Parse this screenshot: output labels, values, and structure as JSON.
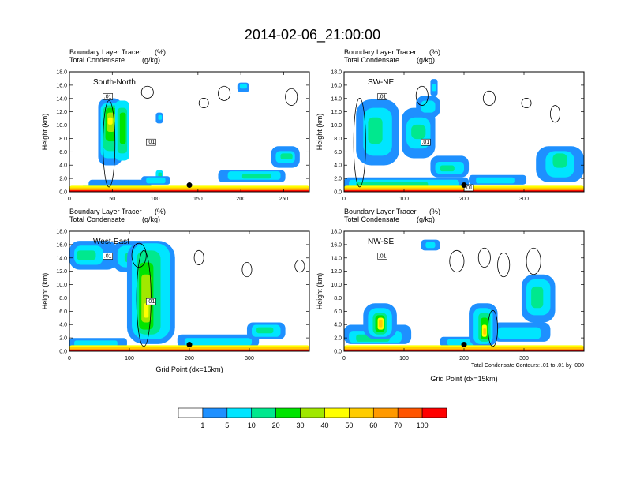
{
  "title": "2014-02-06_21:00:00",
  "chart_data": [
    {
      "type": "heatmap",
      "cross_section": "South-North",
      "subtitle_left": "Boundary Layer Tracer",
      "subtitle_units": "(%)",
      "subtitle2_left": "Total Condensate",
      "subtitle2_units": "(g/kg)",
      "ylabel": "Height (km)",
      "xlabel": "",
      "xlim": [
        0,
        280
      ],
      "ylim": [
        0,
        18
      ],
      "xticks": [
        0,
        50,
        100,
        150,
        200,
        250
      ],
      "contour_labels": [
        ".01",
        ".01"
      ],
      "marker": {
        "x": 140,
        "y": 1.0
      }
    },
    {
      "type": "heatmap",
      "cross_section": "SW-NE",
      "subtitle_left": "Boundary Layer Tracer",
      "subtitle_units": "(%)",
      "subtitle2_left": "Total Condensate",
      "subtitle2_units": "(g/kg)",
      "ylabel": "Height (km)",
      "xlabel": "",
      "xlim": [
        0,
        400
      ],
      "ylim": [
        0,
        18
      ],
      "xticks": [
        0,
        100,
        200,
        300
      ],
      "contour_labels": [
        ".01",
        ".01",
        ".01"
      ],
      "marker": {
        "x": 200,
        "y": 1.0
      }
    },
    {
      "type": "heatmap",
      "cross_section": "West-East",
      "subtitle_left": "Boundary Layer Tracer",
      "subtitle_units": "(%)",
      "subtitle2_left": "Total Condensate",
      "subtitle2_units": "(g/kg)",
      "ylabel": "Height (km)",
      "xlabel": "Grid Point (dx=15km)",
      "xlim": [
        0,
        400
      ],
      "ylim": [
        0,
        18
      ],
      "xticks": [
        0,
        100,
        200,
        300
      ],
      "contour_labels": [
        ".01",
        ".01"
      ],
      "marker": {
        "x": 200,
        "y": 1.0
      }
    },
    {
      "type": "heatmap",
      "cross_section": "NW-SE",
      "subtitle_left": "Boundary Layer Tracer",
      "subtitle_units": "(%)",
      "subtitle2_left": "Total Condensate",
      "subtitle2_units": "(g/kg)",
      "ylabel": "Height (km)",
      "xlabel": "Grid Point (dx=15km)",
      "xlim": [
        0,
        400
      ],
      "ylim": [
        0,
        18
      ],
      "xticks": [
        0,
        100,
        200,
        300
      ],
      "contour_labels": [
        ".01"
      ],
      "marker": {
        "x": 200,
        "y": 1.0
      },
      "contour_info": "Total Condensate Contours: .01 to .01 by .000"
    }
  ],
  "yticks": [
    "0.0",
    "2.0",
    "4.0",
    "6.0",
    "8.0",
    "10.0",
    "12.0",
    "14.0",
    "16.0",
    "18.0"
  ],
  "colorbar": {
    "levels": [
      "1",
      "5",
      "10",
      "20",
      "30",
      "40",
      "50",
      "60",
      "70",
      "100"
    ],
    "colors": [
      "#ffffff",
      "#1e90ff",
      "#00e5ff",
      "#00e88e",
      "#00e400",
      "#a0e800",
      "#ffff00",
      "#ffcc00",
      "#ff9900",
      "#ff5500",
      "#ff0000"
    ]
  }
}
